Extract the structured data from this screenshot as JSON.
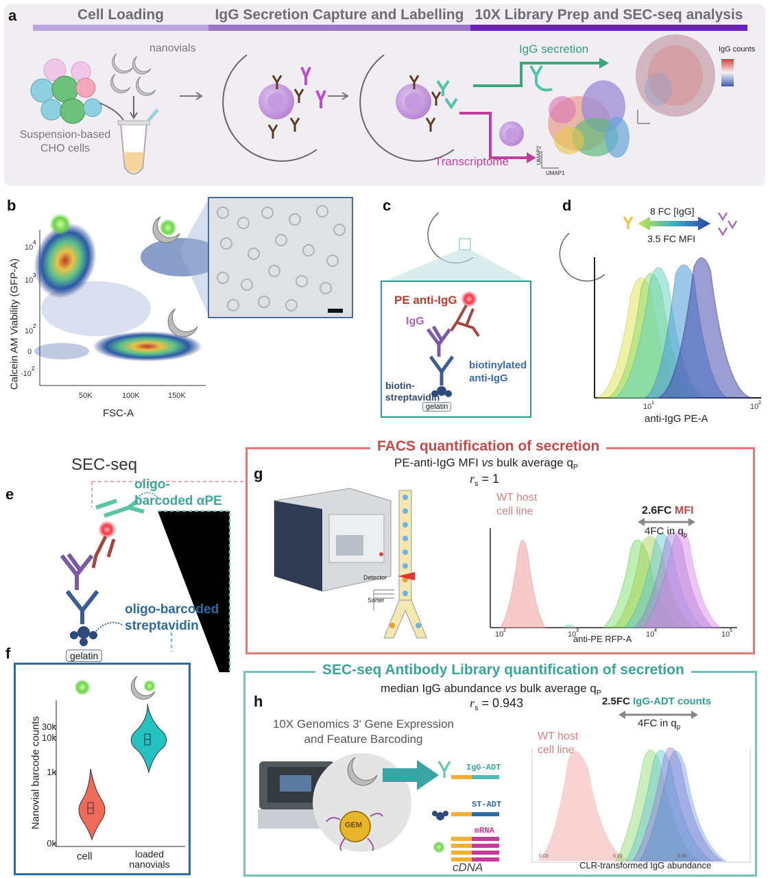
{
  "panel_letters": {
    "a": "a",
    "b": "b",
    "c": "c",
    "d": "d",
    "e": "e",
    "f": "f",
    "g": "g",
    "h": "h"
  },
  "panel_a": {
    "stages": [
      "Cell Loading",
      "IgG Secretion Capture and Labelling",
      "10X Library Prep and SEC-seq analysis"
    ],
    "stage_colors": [
      "#b7a6dd",
      "#9a76c9",
      "#6a22b8"
    ],
    "nanovials": "nanovials",
    "cells_label_1": "Suspension-based",
    "cells_label_2": "CHO cells",
    "igg_secretion": "IgG secretion",
    "transcriptome": "Transcriptome",
    "igg_counts": "IgG counts",
    "umap1": "UMAP1",
    "umap2": "UMAP2"
  },
  "panel_b": {
    "xlabel": "FSC-A",
    "ylabel": "Calcein AM Viability (GFP-A)",
    "xticks": [
      "50K",
      "100K",
      "150K"
    ],
    "yticks": [
      "10",
      "10",
      "10",
      "0",
      "-10"
    ],
    "yexps": [
      "4",
      "3",
      "2",
      "",
      "2"
    ]
  },
  "panel_c": {
    "pe_anti_igg": "PE anti-IgG",
    "igg": "IgG",
    "biotinylated_1": "biotinylated",
    "biotinylated_2": "anti-IgG",
    "biotin_1": "biotin-",
    "biotin_2": "streptavidin",
    "gelatin": "gelatin"
  },
  "panel_d": {
    "fc_igg": "8 FC [IgG]",
    "fc_mfi": "3.5 FC MFI",
    "xlabel": "anti-IgG PE-A",
    "xticks": [
      "10",
      "10"
    ],
    "xexps": [
      "1",
      "2"
    ]
  },
  "panel_e": {
    "title": "SEC-seq",
    "oligo_ape_1": "oligo-",
    "oligo_ape_2": "barcoded αPE",
    "oligo_strep_1": "oligo-barcoded",
    "oligo_strep_2": "streptavidin",
    "gelatin": "gelatin"
  },
  "panel_g": {
    "title": "FACS quantification of secretion",
    "subtitle_a": "PE-anti-IgG MFI ",
    "subtitle_vs": "vs",
    "subtitle_b": " bulk average q",
    "subtitle_sub": "P",
    "rs": "r",
    "rs_sub": "s",
    "rs_val": " = 1",
    "wt_1": "WT host",
    "wt_2": "cell line",
    "fc_a": "2.6FC ",
    "fc_b": "MFI",
    "fc_q": "4FC in q",
    "fc_q_sub": "p",
    "detector": "Detector",
    "sorter": "Sorter",
    "xlabel": "anti-PE RFP-A",
    "xticks": [
      "10",
      "10",
      "10",
      "10"
    ],
    "xexps": [
      "2",
      "3",
      "4",
      "5"
    ]
  },
  "panel_h": {
    "title": "SEC-seq Antibody Library quantification of secretion",
    "subtitle_a": "median IgG abundance ",
    "subtitle_vs": "vs",
    "subtitle_b": " bulk average q",
    "subtitle_sub": "P",
    "rs": "r",
    "rs_sub": "s",
    "rs_val": " = 0.943",
    "genomics_1": "10X Genomics 3' Gene Expression",
    "genomics_2": "and Feature Barcoding",
    "gem": "GEM",
    "igg_adt": "IgG-ADT",
    "st_adt": "ST-ADT",
    "mrna": "mRNA",
    "cdna": "cDNA",
    "wt_1": "WT host",
    "wt_2": "cell line",
    "fc_a": "2.5FC ",
    "fc_b": "IgG-ADT counts",
    "fc_q": "4FC in q",
    "fc_q_sub": "p",
    "xlabel": "CLR-transformed IgG abundance",
    "xticks": [
      "0.03",
      "0.10",
      "0.30"
    ]
  },
  "panel_f": {
    "ylabel": "Nanovial barcode counts",
    "categories": [
      "cell",
      "loaded nanovials"
    ],
    "cat2_line1": "loaded",
    "cat2_line2": "nanovials",
    "yticks": [
      "30k",
      "10k",
      "1k",
      "0k"
    ]
  }
}
